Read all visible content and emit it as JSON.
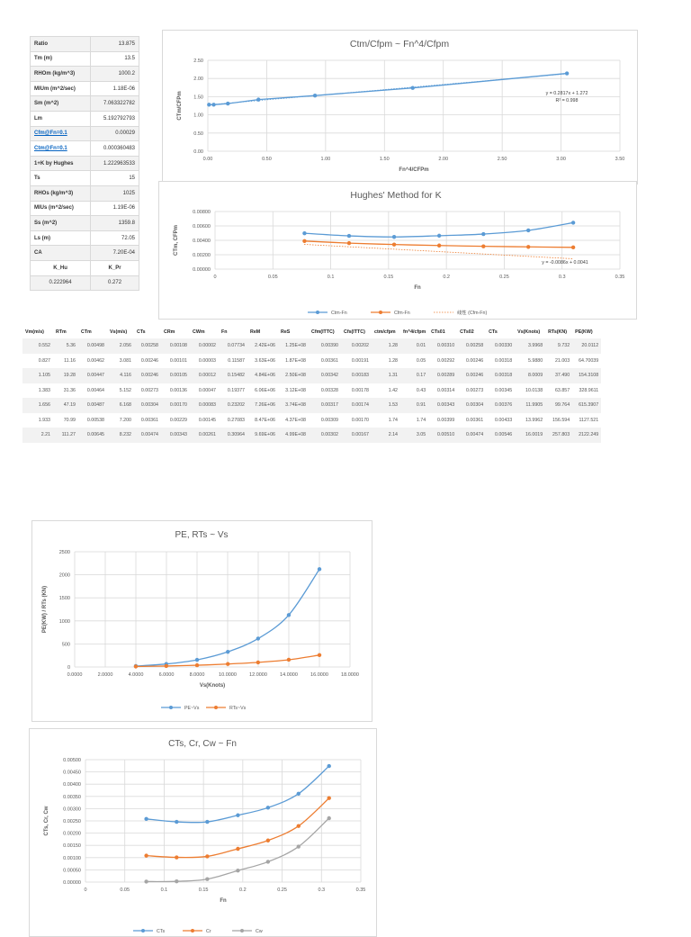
{
  "params": {
    "rows": [
      {
        "label": "Ratio",
        "value": "13.875"
      },
      {
        "label": "Tm (m)",
        "value": "13.5"
      },
      {
        "label": "RHOm (kg/m^3)",
        "value": "1000.2"
      },
      {
        "label": "MIUm (m^2/sec)",
        "value": "1.18E-06"
      },
      {
        "label": "Sm (m^2)",
        "value": "7.063322782"
      },
      {
        "label": "Lm",
        "value": "5.192792793"
      },
      {
        "label": "Cfm@Fn=0.1",
        "value": "0.00029",
        "link": true
      },
      {
        "label": "Ctm@Fn=0.1",
        "value": "0.000360483",
        "link": true
      },
      {
        "label": "1+K by Hughes",
        "value": "1.222963533"
      },
      {
        "label": "Ts",
        "value": "15"
      },
      {
        "label": "RHOs (kg/m^3)",
        "value": "1025"
      },
      {
        "label": "MIUs (m^2/sec)",
        "value": "1.19E-06"
      },
      {
        "label": "Ss (m^2)",
        "value": "1359.8"
      },
      {
        "label": "Ls (m)",
        "value": "72.05"
      },
      {
        "label": "CA",
        "value": "7.20E-04"
      }
    ],
    "k_header": {
      "k_hu": "K_Hu",
      "k_pr": "K_Pr"
    },
    "k_values": {
      "k_hu": "0.222964",
      "k_pr": "0.272"
    }
  },
  "table": {
    "headers": [
      "Vm(m/s)",
      "RTm",
      "CTm",
      "Vs(m/s)",
      "CTs",
      "CRm",
      "CWm",
      "Fn",
      "ReM",
      "ReS",
      "Cfm(ITTC)",
      "Cfs(ITTC)",
      "ctm/cfpm",
      "fn^4/cfpm",
      "CTs01",
      "CTs02",
      "CTs",
      "Vs(Knots)",
      "RTs(KN)",
      "PE(KW)"
    ],
    "rows": [
      [
        "0.552",
        "5.36",
        "0.00498",
        "2.056",
        "0.00258",
        "0.00108",
        "0.00002",
        "0.07734",
        "2.42E+06",
        "1.25E+08",
        "0.00390",
        "0.00202",
        "1.28",
        "0.01",
        "0.00310",
        "0.00258",
        "0.00330",
        "3.9968",
        "9.732",
        "20.0112"
      ],
      [
        "0.827",
        "11.16",
        "0.00462",
        "3.081",
        "0.00246",
        "0.00101",
        "0.00003",
        "0.11587",
        "3.63E+06",
        "1.87E+08",
        "0.00361",
        "0.00191",
        "1.28",
        "0.05",
        "0.00292",
        "0.00246",
        "0.00318",
        "5.9880",
        "21.003",
        "64.70039"
      ],
      [
        "1.105",
        "19.28",
        "0.00447",
        "4.116",
        "0.00246",
        "0.00105",
        "0.00012",
        "0.15482",
        "4.84E+06",
        "2.50E+08",
        "0.00342",
        "0.00183",
        "1.31",
        "0.17",
        "0.00289",
        "0.00246",
        "0.00318",
        "8.0009",
        "37.490",
        "154.3108"
      ],
      [
        "1.383",
        "31.36",
        "0.00464",
        "5.152",
        "0.00273",
        "0.00136",
        "0.00047",
        "0.19377",
        "6.06E+06",
        "3.12E+08",
        "0.00328",
        "0.00178",
        "1.42",
        "0.43",
        "0.00314",
        "0.00273",
        "0.00345",
        "10.0138",
        "63.857",
        "328.9611"
      ],
      [
        "1.656",
        "47.19",
        "0.00487",
        "6.168",
        "0.00304",
        "0.00170",
        "0.00083",
        "0.23202",
        "7.26E+06",
        "3.74E+08",
        "0.00317",
        "0.00174",
        "1.53",
        "0.91",
        "0.00343",
        "0.00304",
        "0.00376",
        "11.9905",
        "99.764",
        "615.3907"
      ],
      [
        "1.933",
        "70.99",
        "0.00538",
        "7.200",
        "0.00361",
        "0.00229",
        "0.00145",
        "0.27083",
        "8.47E+06",
        "4.37E+08",
        "0.00309",
        "0.00170",
        "1.74",
        "1.74",
        "0.00399",
        "0.00361",
        "0.00433",
        "13.9962",
        "156.594",
        "1127.521"
      ],
      [
        "2.21",
        "111.27",
        "0.00645",
        "8.232",
        "0.00474",
        "0.00343",
        "0.00261",
        "0.30964",
        "9.69E+06",
        "4.99E+08",
        "0.00302",
        "0.00167",
        "2.14",
        "3.05",
        "0.00510",
        "0.00474",
        "0.00546",
        "16.0019",
        "257.803",
        "2122.249"
      ]
    ]
  },
  "chart_data": [
    {
      "type": "scatter",
      "title": "Ctm/Cfpm ~ Fn^4/Cfpm",
      "xlabel": "Fn^4/CFPm",
      "ylabel": "CTm/CFPm",
      "xlim": [
        0,
        3.5
      ],
      "ylim": [
        0,
        2.5
      ],
      "xticks": [
        "0.00",
        "0.50",
        "1.00",
        "1.50",
        "2.00",
        "2.50",
        "3.00",
        "3.50"
      ],
      "yticks": [
        "0.00",
        "0.50",
        "1.00",
        "1.50",
        "2.00",
        "2.50"
      ],
      "series": [
        {
          "name": "ctm/cfpm",
          "color": "#5b9bd5",
          "x": [
            0.01,
            0.05,
            0.17,
            0.43,
            0.91,
            1.74,
            3.05
          ],
          "y": [
            1.28,
            1.28,
            1.31,
            1.42,
            1.53,
            1.74,
            2.14
          ]
        }
      ],
      "trendline": {
        "equation": "y = 0.2817x + 1.272",
        "r2": "R² = 0.998",
        "slope": 0.2817,
        "intercept": 1.272
      },
      "grid": true,
      "legend": "none"
    },
    {
      "type": "line",
      "title": "Hughes' Method for K",
      "xlabel": "Fn",
      "ylabel": "CTm, CFPm",
      "xlim": [
        0,
        0.35
      ],
      "ylim": [
        0,
        0.008
      ],
      "xticks": [
        "0",
        "0.05",
        "0.1",
        "0.15",
        "0.2",
        "0.25",
        "0.3",
        "0.35"
      ],
      "yticks": [
        "0.00000",
        "0.00200",
        "0.00400",
        "0.00600",
        "0.00800"
      ],
      "x": [
        0.07734,
        0.11587,
        0.15482,
        0.19377,
        0.23202,
        0.27083,
        0.30964
      ],
      "series": [
        {
          "name": "Ctm-Fn",
          "color": "#5b9bd5",
          "values": [
            0.00498,
            0.00462,
            0.00447,
            0.00464,
            0.00487,
            0.00538,
            0.00645
          ]
        },
        {
          "name": "Cfm-Fn",
          "color": "#ed7d31",
          "values": [
            0.0039,
            0.00361,
            0.00342,
            0.00328,
            0.00317,
            0.00309,
            0.00302
          ]
        }
      ],
      "trendline": {
        "name": "线性 (Cfm-Fn)",
        "equation": "y = -0.0086x + 0.0041",
        "slope": -0.0086,
        "intercept": 0.0041
      },
      "grid": true,
      "legend": "bottom"
    },
    {
      "type": "line",
      "title": "PE, RTs ~ Vs",
      "xlabel": "Vs(Knots)",
      "ylabel": "PE(KW) / RTs (KN)",
      "xlim": [
        0,
        18
      ],
      "ylim": [
        0,
        2500
      ],
      "xticks": [
        "0.0000",
        "2.0000",
        "4.0000",
        "6.0000",
        "8.0000",
        "10.0000",
        "12.0000",
        "14.0000",
        "16.0000",
        "18.0000"
      ],
      "yticks": [
        "0",
        "500",
        "1000",
        "1500",
        "2000",
        "2500"
      ],
      "x": [
        3.9968,
        5.988,
        8.0009,
        10.0138,
        11.9905,
        13.9962,
        16.0019
      ],
      "series": [
        {
          "name": "PE~Vs",
          "color": "#5b9bd5",
          "values": [
            20.0112,
            64.70039,
            154.3108,
            328.9611,
            615.3907,
            1127.521,
            2122.249
          ]
        },
        {
          "name": "RTs~Vs",
          "color": "#ed7d31",
          "values": [
            9.732,
            21.003,
            37.49,
            63.857,
            99.764,
            156.594,
            257.803
          ]
        }
      ],
      "grid": true,
      "legend": "bottom"
    },
    {
      "type": "line",
      "title": "CTs, Cr, Cw ~ Fn",
      "xlabel": "Fn",
      "ylabel": "CTs, Cr, Cw",
      "xlim": [
        0,
        0.35
      ],
      "ylim": [
        0,
        0.005
      ],
      "xticks": [
        "0",
        "0.05",
        "0.1",
        "0.15",
        "0.2",
        "0.25",
        "0.3",
        "0.35"
      ],
      "yticks": [
        "0.00000",
        "0.00050",
        "0.00100",
        "0.00150",
        "0.00200",
        "0.00250",
        "0.00300",
        "0.00350",
        "0.00400",
        "0.00450",
        "0.00500"
      ],
      "x": [
        0.07734,
        0.11587,
        0.15482,
        0.19377,
        0.23202,
        0.27083,
        0.30964
      ],
      "series": [
        {
          "name": "CTs",
          "color": "#5b9bd5",
          "values": [
            0.00258,
            0.00246,
            0.00246,
            0.00273,
            0.00304,
            0.00361,
            0.00474
          ]
        },
        {
          "name": "Cr",
          "color": "#ed7d31",
          "values": [
            0.00108,
            0.00101,
            0.00105,
            0.00136,
            0.0017,
            0.00229,
            0.00343
          ]
        },
        {
          "name": "Cw",
          "color": "#a5a5a5",
          "values": [
            2e-05,
            3e-05,
            0.00012,
            0.00047,
            0.00083,
            0.00145,
            0.00261
          ]
        }
      ],
      "grid": true,
      "legend": "bottom"
    }
  ]
}
